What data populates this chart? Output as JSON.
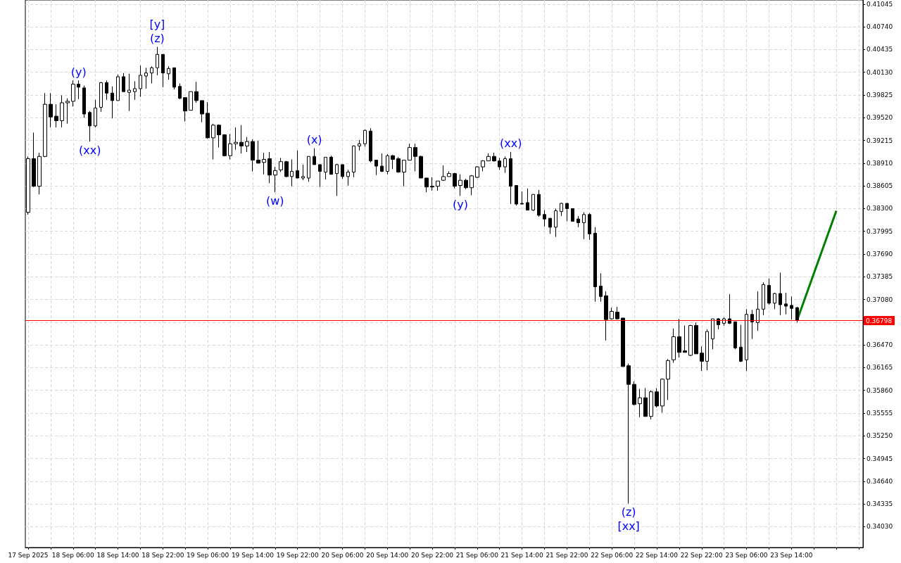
{
  "chart_data": {
    "type": "candlestick",
    "x": [
      "2025-09-17T22:00",
      "2025-09-17T23:00",
      "2025-09-18T00:00",
      "2025-09-18T01:00",
      "2025-09-18T02:00",
      "2025-09-18T03:00",
      "2025-09-18T04:00",
      "2025-09-18T05:00",
      "2025-09-18T06:00",
      "2025-09-18T07:00",
      "2025-09-18T08:00",
      "2025-09-18T09:00",
      "2025-09-18T10:00",
      "2025-09-18T11:00",
      "2025-09-18T12:00",
      "2025-09-18T13:00",
      "2025-09-18T14:00",
      "2025-09-18T15:00",
      "2025-09-18T16:00",
      "2025-09-18T17:00",
      "2025-09-18T18:00",
      "2025-09-18T19:00",
      "2025-09-18T20:00",
      "2025-09-18T21:00",
      "2025-09-18T22:00",
      "2025-09-18T23:00",
      "2025-09-19T00:00",
      "2025-09-19T01:00",
      "2025-09-19T02:00",
      "2025-09-19T03:00",
      "2025-09-19T04:00",
      "2025-09-19T05:00",
      "2025-09-19T06:00",
      "2025-09-19T07:00",
      "2025-09-19T08:00",
      "2025-09-19T09:00",
      "2025-09-19T10:00",
      "2025-09-19T11:00",
      "2025-09-19T12:00",
      "2025-09-19T13:00",
      "2025-09-19T14:00",
      "2025-09-19T15:00",
      "2025-09-19T16:00",
      "2025-09-19T17:00",
      "2025-09-19T18:00",
      "2025-09-19T19:00",
      "2025-09-19T20:00",
      "2025-09-19T21:00",
      "2025-09-19T22:00",
      "2025-09-19T23:00",
      "2025-09-20T00:00",
      "2025-09-20T01:00",
      "2025-09-20T02:00",
      "2025-09-20T03:00",
      "2025-09-20T04:00",
      "2025-09-20T05:00",
      "2025-09-20T06:00",
      "2025-09-20T07:00",
      "2025-09-20T08:00",
      "2025-09-20T09:00",
      "2025-09-20T10:00",
      "2025-09-20T11:00",
      "2025-09-20T12:00",
      "2025-09-20T13:00",
      "2025-09-20T14:00",
      "2025-09-20T15:00",
      "2025-09-20T16:00",
      "2025-09-20T17:00",
      "2025-09-20T18:00",
      "2025-09-20T19:00",
      "2025-09-20T20:00",
      "2025-09-20T21:00",
      "2025-09-20T22:00",
      "2025-09-20T23:00",
      "2025-09-21T00:00",
      "2025-09-21T01:00",
      "2025-09-21T02:00",
      "2025-09-21T03:00",
      "2025-09-21T04:00",
      "2025-09-21T05:00",
      "2025-09-21T06:00",
      "2025-09-21T07:00",
      "2025-09-21T08:00",
      "2025-09-21T09:00",
      "2025-09-21T10:00",
      "2025-09-21T11:00",
      "2025-09-21T12:00",
      "2025-09-21T13:00",
      "2025-09-21T14:00",
      "2025-09-21T15:00",
      "2025-09-21T16:00",
      "2025-09-21T17:00",
      "2025-09-21T18:00",
      "2025-09-21T19:00",
      "2025-09-21T20:00",
      "2025-09-21T21:00",
      "2025-09-21T22:00",
      "2025-09-21T23:00",
      "2025-09-22T00:00",
      "2025-09-22T01:00",
      "2025-09-22T02:00",
      "2025-09-22T03:00",
      "2025-09-22T04:00",
      "2025-09-22T05:00",
      "2025-09-22T06:00",
      "2025-09-22T07:00",
      "2025-09-22T08:00",
      "2025-09-22T09:00",
      "2025-09-22T10:00",
      "2025-09-22T11:00",
      "2025-09-22T12:00",
      "2025-09-22T13:00",
      "2025-09-22T14:00",
      "2025-09-22T15:00",
      "2025-09-22T16:00",
      "2025-09-22T17:00",
      "2025-09-22T18:00",
      "2025-09-22T19:00",
      "2025-09-22T20:00",
      "2025-09-22T21:00",
      "2025-09-22T22:00",
      "2025-09-22T23:00",
      "2025-09-23T00:00",
      "2025-09-23T01:00",
      "2025-09-23T02:00",
      "2025-09-23T03:00",
      "2025-09-23T04:00",
      "2025-09-23T05:00",
      "2025-09-23T06:00",
      "2025-09-23T07:00",
      "2025-09-23T08:00",
      "2025-09-23T09:00",
      "2025-09-23T10:00",
      "2025-09-23T11:00",
      "2025-09-23T12:00",
      "2025-09-23T13:00",
      "2025-09-23T14:00",
      "2025-09-23T15:00"
    ],
    "ohlc": [
      [
        0.3825,
        0.39,
        0.3822,
        0.3897
      ],
      [
        0.3897,
        0.3932,
        0.3859,
        0.386
      ],
      [
        0.386,
        0.3905,
        0.3849,
        0.39
      ],
      [
        0.39,
        0.3985,
        0.3899,
        0.397
      ],
      [
        0.397,
        0.3985,
        0.3939,
        0.3953
      ],
      [
        0.3954,
        0.397,
        0.3939,
        0.3948
      ],
      [
        0.3948,
        0.3982,
        0.3939,
        0.3972
      ],
      [
        0.3972,
        0.3978,
        0.3944,
        0.3974
      ],
      [
        0.3974,
        0.4002,
        0.3967,
        0.3997
      ],
      [
        0.3997,
        0.4002,
        0.3977,
        0.3993
      ],
      [
        0.3992,
        0.3995,
        0.3952,
        0.3957
      ],
      [
        0.3959,
        0.3961,
        0.392,
        0.3941
      ],
      [
        0.3941,
        0.3976,
        0.3939,
        0.3965
      ],
      [
        0.3966,
        0.4,
        0.396,
        0.3999
      ],
      [
        0.3999,
        0.4002,
        0.3976,
        0.3985
      ],
      [
        0.3985,
        0.3994,
        0.3951,
        0.3975
      ],
      [
        0.3975,
        0.401,
        0.3975,
        0.4007
      ],
      [
        0.4007,
        0.4012,
        0.3987,
        0.3987
      ],
      [
        0.3986,
        0.4011,
        0.3961,
        0.3989
      ],
      [
        0.3987,
        0.4001,
        0.3976,
        0.3991
      ],
      [
        0.3991,
        0.4022,
        0.398,
        0.4009
      ],
      [
        0.4008,
        0.4019,
        0.3991,
        0.4012
      ],
      [
        0.4012,
        0.4021,
        0.3998,
        0.4019
      ],
      [
        0.4019,
        0.4047,
        0.4009,
        0.4037
      ],
      [
        0.4037,
        0.4037,
        0.3993,
        0.4012
      ],
      [
        0.4011,
        0.4021,
        0.4003,
        0.4018
      ],
      [
        0.4019,
        0.4019,
        0.399,
        0.3993
      ],
      [
        0.3994,
        0.3998,
        0.3977,
        0.3978
      ],
      [
        0.3979,
        0.3979,
        0.3947,
        0.3961
      ],
      [
        0.3962,
        0.3987,
        0.3962,
        0.3987
      ],
      [
        0.3987,
        0.4,
        0.3972,
        0.3975
      ],
      [
        0.3975,
        0.3975,
        0.3946,
        0.3957
      ],
      [
        0.3958,
        0.3973,
        0.3924,
        0.3925
      ],
      [
        0.3925,
        0.3944,
        0.3896,
        0.3942
      ],
      [
        0.3942,
        0.3943,
        0.3912,
        0.3929
      ],
      [
        0.3929,
        0.393,
        0.39,
        0.3901
      ],
      [
        0.3901,
        0.393,
        0.3896,
        0.3917
      ],
      [
        0.3917,
        0.3939,
        0.3909,
        0.3919
      ],
      [
        0.3919,
        0.3942,
        0.3904,
        0.3914
      ],
      [
        0.3914,
        0.3926,
        0.3906,
        0.392
      ],
      [
        0.392,
        0.3923,
        0.388,
        0.3895
      ],
      [
        0.3895,
        0.3921,
        0.3891,
        0.3891
      ],
      [
        0.3892,
        0.3905,
        0.3876,
        0.3896
      ],
      [
        0.3897,
        0.3906,
        0.3864,
        0.3875
      ],
      [
        0.3875,
        0.3886,
        0.3852,
        0.3881
      ],
      [
        0.3882,
        0.3898,
        0.3879,
        0.3893
      ],
      [
        0.3893,
        0.3894,
        0.3872,
        0.3873
      ],
      [
        0.3873,
        0.3896,
        0.386,
        0.388
      ],
      [
        0.3881,
        0.3908,
        0.3871,
        0.3871
      ],
      [
        0.3871,
        0.3889,
        0.3868,
        0.3873
      ],
      [
        0.3871,
        0.39,
        0.3866,
        0.39
      ],
      [
        0.39,
        0.3911,
        0.3889,
        0.3889
      ],
      [
        0.3889,
        0.3889,
        0.3859,
        0.388
      ],
      [
        0.3879,
        0.3899,
        0.3869,
        0.3899
      ],
      [
        0.3899,
        0.3901,
        0.3876,
        0.3876
      ],
      [
        0.3877,
        0.389,
        0.3847,
        0.3889
      ],
      [
        0.3889,
        0.3889,
        0.387,
        0.3873
      ],
      [
        0.3873,
        0.3882,
        0.3861,
        0.3879
      ],
      [
        0.3879,
        0.3915,
        0.3872,
        0.3914
      ],
      [
        0.3914,
        0.3922,
        0.3908,
        0.3917
      ],
      [
        0.3917,
        0.3936,
        0.3913,
        0.3935
      ],
      [
        0.3934,
        0.3938,
        0.3892,
        0.3894
      ],
      [
        0.3895,
        0.3895,
        0.3875,
        0.3887
      ],
      [
        0.3887,
        0.3904,
        0.3879,
        0.388
      ],
      [
        0.388,
        0.3903,
        0.3876,
        0.3901
      ],
      [
        0.3901,
        0.3902,
        0.3883,
        0.3896
      ],
      [
        0.3897,
        0.3899,
        0.3878,
        0.3879
      ],
      [
        0.3879,
        0.3895,
        0.386,
        0.3895
      ],
      [
        0.3895,
        0.3917,
        0.3895,
        0.3912
      ],
      [
        0.3912,
        0.3917,
        0.388,
        0.39
      ],
      [
        0.39,
        0.3901,
        0.3871,
        0.3871
      ],
      [
        0.3871,
        0.3871,
        0.3852,
        0.3859
      ],
      [
        0.386,
        0.3872,
        0.3854,
        0.3859
      ],
      [
        0.386,
        0.3867,
        0.3854,
        0.3867
      ],
      [
        0.3868,
        0.3888,
        0.3867,
        0.3873
      ],
      [
        0.3873,
        0.388,
        0.3873,
        0.3877
      ],
      [
        0.3877,
        0.3878,
        0.3857,
        0.386
      ],
      [
        0.3861,
        0.3876,
        0.3847,
        0.3868
      ],
      [
        0.3868,
        0.387,
        0.3856,
        0.3858
      ],
      [
        0.3858,
        0.3875,
        0.3848,
        0.3874
      ],
      [
        0.3872,
        0.3887,
        0.3871,
        0.3886
      ],
      [
        0.3886,
        0.3895,
        0.388,
        0.3894
      ],
      [
        0.3894,
        0.3904,
        0.3894,
        0.39
      ],
      [
        0.39,
        0.3905,
        0.3893,
        0.3894
      ],
      [
        0.3894,
        0.3898,
        0.3882,
        0.3886
      ],
      [
        0.3886,
        0.39,
        0.3878,
        0.3897
      ],
      [
        0.3897,
        0.3906,
        0.3836,
        0.386
      ],
      [
        0.3861,
        0.3861,
        0.3834,
        0.3836
      ],
      [
        0.3837,
        0.3853,
        0.3836,
        0.3836
      ],
      [
        0.3838,
        0.3857,
        0.3828,
        0.3828
      ],
      [
        0.3828,
        0.3849,
        0.3827,
        0.3849
      ],
      [
        0.3849,
        0.3855,
        0.3819,
        0.3821
      ],
      [
        0.3822,
        0.3828,
        0.3806,
        0.3816
      ],
      [
        0.3817,
        0.3817,
        0.3796,
        0.3805
      ],
      [
        0.3805,
        0.383,
        0.3792,
        0.3827
      ],
      [
        0.3826,
        0.3838,
        0.382,
        0.3837
      ],
      [
        0.3837,
        0.3837,
        0.3813,
        0.383
      ],
      [
        0.383,
        0.383,
        0.3813,
        0.3813
      ],
      [
        0.3816,
        0.382,
        0.3805,
        0.3811
      ],
      [
        0.3811,
        0.3825,
        0.3789,
        0.3822
      ],
      [
        0.3822,
        0.3824,
        0.3788,
        0.3796
      ],
      [
        0.3797,
        0.3805,
        0.3705,
        0.3725
      ],
      [
        0.3726,
        0.3743,
        0.3705,
        0.3712
      ],
      [
        0.3713,
        0.3719,
        0.3653,
        0.3681
      ],
      [
        0.3682,
        0.3697,
        0.3681,
        0.3692
      ],
      [
        0.3691,
        0.3698,
        0.3681,
        0.3682
      ],
      [
        0.3683,
        0.3683,
        0.3618,
        0.3618
      ],
      [
        0.3619,
        0.3622,
        0.3434,
        0.3594
      ],
      [
        0.3594,
        0.3598,
        0.3566,
        0.3567
      ],
      [
        0.3568,
        0.3588,
        0.355,
        0.3576
      ],
      [
        0.3576,
        0.3589,
        0.3551,
        0.3551
      ],
      [
        0.3551,
        0.3586,
        0.3547,
        0.3584
      ],
      [
        0.3584,
        0.3589,
        0.3563,
        0.3565
      ],
      [
        0.3565,
        0.3602,
        0.3556,
        0.3601
      ],
      [
        0.3601,
        0.3628,
        0.3573,
        0.3626
      ],
      [
        0.3627,
        0.3669,
        0.3623,
        0.3658
      ],
      [
        0.3658,
        0.3682,
        0.363,
        0.3637
      ],
      [
        0.3639,
        0.3673,
        0.3637,
        0.3637
      ],
      [
        0.3633,
        0.3674,
        0.3632,
        0.3673
      ],
      [
        0.3673,
        0.3677,
        0.3635,
        0.3635
      ],
      [
        0.3636,
        0.3645,
        0.3612,
        0.3625
      ],
      [
        0.3625,
        0.3668,
        0.3613,
        0.3665
      ],
      [
        0.3655,
        0.3682,
        0.3641,
        0.3682
      ],
      [
        0.3682,
        0.3683,
        0.3668,
        0.3674
      ],
      [
        0.3676,
        0.3684,
        0.3673,
        0.3682
      ],
      [
        0.3682,
        0.3715,
        0.3675,
        0.3676
      ],
      [
        0.3678,
        0.3678,
        0.3641,
        0.3643
      ],
      [
        0.3644,
        0.3674,
        0.3624,
        0.3625
      ],
      [
        0.3627,
        0.3695,
        0.3612,
        0.3688
      ],
      [
        0.3688,
        0.3694,
        0.3655,
        0.3678
      ],
      [
        0.3677,
        0.3719,
        0.3666,
        0.3695
      ],
      [
        0.3695,
        0.3731,
        0.3687,
        0.3728
      ],
      [
        0.3727,
        0.3736,
        0.3701,
        0.3703
      ],
      [
        0.3703,
        0.3717,
        0.3695,
        0.3716
      ],
      [
        0.3716,
        0.3744,
        0.3687,
        0.3701
      ],
      [
        0.3702,
        0.3717,
        0.3688,
        0.3699
      ],
      [
        0.37,
        0.3712,
        0.3681,
        0.3696
      ],
      [
        0.3697,
        0.3698,
        0.3677,
        0.36798
      ]
    ],
    "series": [
      {
        "type": "line",
        "x": [
          "2025-09-23T15:00",
          "2025-09-23T22:00"
        ],
        "values": [
          0.368,
          0.3827
        ],
        "color": "#008000"
      }
    ],
    "xlim": [
      "2025-09-17T21:30",
      "2025-09-24T02:45"
    ],
    "xticks": [
      {
        "value": "2025-09-17T22:00",
        "label": "17 Sep 2025"
      },
      {
        "value": "2025-09-18T02:00",
        "label": null
      },
      {
        "value": "2025-09-18T06:00",
        "label": "18 Sep 06:00"
      },
      {
        "value": "2025-09-18T10:00",
        "label": null
      },
      {
        "value": "2025-09-18T14:00",
        "label": "18 Sep 14:00"
      },
      {
        "value": "2025-09-18T18:00",
        "label": null
      },
      {
        "value": "2025-09-18T22:00",
        "label": "18 Sep 22:00"
      },
      {
        "value": "2025-09-19T02:00",
        "label": null
      },
      {
        "value": "2025-09-19T06:00",
        "label": "19 Sep 06:00"
      },
      {
        "value": "2025-09-19T10:00",
        "label": null
      },
      {
        "value": "2025-09-19T14:00",
        "label": "19 Sep 14:00"
      },
      {
        "value": "2025-09-19T18:00",
        "label": null
      },
      {
        "value": "2025-09-19T22:00",
        "label": "19 Sep 22:00"
      },
      {
        "value": "2025-09-20T02:00",
        "label": null
      },
      {
        "value": "2025-09-20T06:00",
        "label": "20 Sep 06:00"
      },
      {
        "value": "2025-09-20T10:00",
        "label": null
      },
      {
        "value": "2025-09-20T14:00",
        "label": "20 Sep 14:00"
      },
      {
        "value": "2025-09-20T18:00",
        "label": null
      },
      {
        "value": "2025-09-20T22:00",
        "label": "20 Sep 22:00"
      },
      {
        "value": "2025-09-21T02:00",
        "label": null
      },
      {
        "value": "2025-09-21T06:00",
        "label": "21 Sep 06:00"
      },
      {
        "value": "2025-09-21T10:00",
        "label": null
      },
      {
        "value": "2025-09-21T14:00",
        "label": "21 Sep 14:00"
      },
      {
        "value": "2025-09-21T18:00",
        "label": null
      },
      {
        "value": "2025-09-21T22:00",
        "label": "21 Sep 22:00"
      },
      {
        "value": "2025-09-22T02:00",
        "label": null
      },
      {
        "value": "2025-09-22T06:00",
        "label": "22 Sep 06:00"
      },
      {
        "value": "2025-09-22T10:00",
        "label": null
      },
      {
        "value": "2025-09-22T14:00",
        "label": "22 Sep 14:00"
      },
      {
        "value": "2025-09-22T18:00",
        "label": null
      },
      {
        "value": "2025-09-22T22:00",
        "label": "22 Sep 22:00"
      },
      {
        "value": "2025-09-23T02:00",
        "label": null
      },
      {
        "value": "2025-09-23T06:00",
        "label": "23 Sep 06:00"
      },
      {
        "value": "2025-09-23T10:00",
        "label": null
      },
      {
        "value": "2025-09-23T14:00",
        "label": "23 Sep 14:00"
      },
      {
        "value": "2025-09-23T18:00",
        "label": null
      },
      {
        "value": "2025-09-23T22:00",
        "label": null
      },
      {
        "value": "2025-09-24T02:00",
        "label": null
      }
    ],
    "ylim": [
      0.3375,
      0.411
    ],
    "yticks": [
      {
        "value": 0.3403,
        "label": "0.34030"
      },
      {
        "value": 0.34335,
        "label": "0.34335"
      },
      {
        "value": 0.3464,
        "label": "0.34640"
      },
      {
        "value": 0.34945,
        "label": "0.34945"
      },
      {
        "value": 0.3525,
        "label": "0.35250"
      },
      {
        "value": 0.35555,
        "label": "0.35555"
      },
      {
        "value": 0.3586,
        "label": "0.35860"
      },
      {
        "value": 0.36165,
        "label": "0.36165"
      },
      {
        "value": 0.3647,
        "label": "0.36470"
      },
      {
        "value": 0.36775,
        "label": null
      },
      {
        "value": 0.3708,
        "label": "0.37080"
      },
      {
        "value": 0.37385,
        "label": "0.37385"
      },
      {
        "value": 0.3769,
        "label": "0.37690"
      },
      {
        "value": 0.37995,
        "label": "0.37995"
      },
      {
        "value": 0.383,
        "label": "0.38300"
      },
      {
        "value": 0.38605,
        "label": "0.38605"
      },
      {
        "value": 0.3891,
        "label": "0.38910"
      },
      {
        "value": 0.39215,
        "label": "0.39215"
      },
      {
        "value": 0.3952,
        "label": "0.39520"
      },
      {
        "value": 0.39825,
        "label": "0.39825"
      },
      {
        "value": 0.4013,
        "label": "0.40130"
      },
      {
        "value": 0.40435,
        "label": "0.40435"
      },
      {
        "value": 0.4074,
        "label": "0.40740"
      },
      {
        "value": 0.41045,
        "label": "0.41045"
      }
    ],
    "grid": true,
    "ref_lines": [
      {
        "axis": "y",
        "value": 0.36798,
        "label": "0.36798",
        "color": "#ff0000"
      }
    ],
    "annotations": [
      {
        "text": "(z)",
        "x": "2025-09-18T21:00",
        "y": 0.4047
      },
      {
        "text": "[y]",
        "x": "2025-09-18T21:00",
        "y": 0.4047
      },
      {
        "text": "(y)",
        "x": "2025-09-18T07:00",
        "y": 0.4002
      },
      {
        "text": "(xx)",
        "x": "2025-09-18T09:00",
        "y": 0.392
      },
      {
        "text": "(w)",
        "x": "2025-09-19T18:00",
        "y": 0.3852
      },
      {
        "text": "(x)",
        "x": "2025-09-20T01:00",
        "y": 0.3911
      },
      {
        "text": "(y)",
        "x": "2025-09-21T03:00",
        "y": 0.3847
      },
      {
        "text": "(xx)",
        "x": "2025-09-21T12:00",
        "y": 0.3906
      },
      {
        "text": "(z)",
        "x": "2025-09-22T09:00",
        "y": 0.3434
      },
      {
        "text": "[xx]",
        "x": "2025-09-22T09:00",
        "y": 0.3434
      }
    ]
  }
}
